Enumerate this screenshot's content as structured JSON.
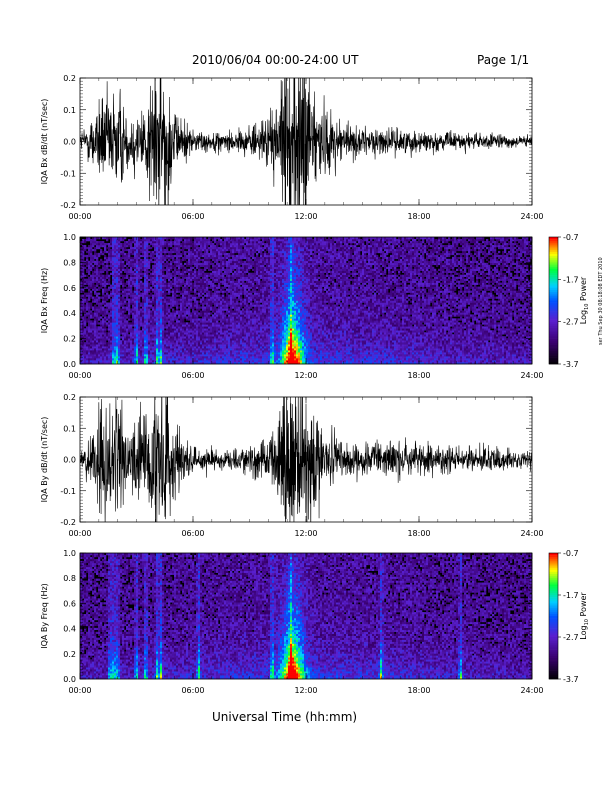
{
  "header": {
    "title": "2010/06/04  00:00-24:00 UT",
    "page": "Page 1/1"
  },
  "footer": {
    "xlabel": "Universal Time (hh:mm)",
    "side_note": "ser Thu Sep 30 08:18:08 EDT 2010"
  },
  "colorbar": {
    "label_prefix": "Log",
    "label_sub": "10",
    "label_suffix": " Power",
    "ticks": [
      "-0.7",
      "-1.7",
      "-2.7",
      "-3.7"
    ],
    "colors": [
      "#ff0000",
      "#ffff00",
      "#00ff00",
      "#00ffff",
      "#0060ff",
      "#6a00d8",
      "#000000"
    ]
  },
  "chart_data": [
    {
      "type": "line",
      "ylabel": "IQA Bx dB/dt (nT/sec)",
      "xlim": [
        "00:00",
        "24:00"
      ],
      "ylim": [
        -0.2,
        0.2
      ],
      "xticks": [
        "00:00",
        "06:00",
        "12:00",
        "18:00",
        "24:00"
      ],
      "yticks": [
        "0.2",
        "0.1",
        "0.0",
        "-0.1",
        "-0.2"
      ],
      "ytick_values": [
        0.2,
        0.1,
        0.0,
        -0.1,
        -0.2
      ],
      "envelope": {
        "x_hours": [
          0,
          0.3,
          0.8,
          1.2,
          1.6,
          2.0,
          2.5,
          3.0,
          3.5,
          3.8,
          4.5,
          5.0,
          5.5,
          6.0,
          7.0,
          8.0,
          9.0,
          10.0,
          10.5,
          10.8,
          12.0,
          12.5,
          13.0,
          14.0,
          15.0,
          16.0,
          17.0,
          18.0,
          20.0,
          22.0,
          24.0
        ],
        "amplitude": [
          0.03,
          0.06,
          0.11,
          0.18,
          0.16,
          0.22,
          0.1,
          0.12,
          0.15,
          0.3,
          0.3,
          0.1,
          0.08,
          0.04,
          0.035,
          0.04,
          0.05,
          0.09,
          0.14,
          0.3,
          0.3,
          0.18,
          0.12,
          0.07,
          0.05,
          0.045,
          0.045,
          0.04,
          0.03,
          0.025,
          0.02
        ]
      }
    },
    {
      "type": "heatmap",
      "ylabel": "IQA Bx Freq (Hz)",
      "xlim": [
        "00:00",
        "24:00"
      ],
      "ylim": [
        0.0,
        1.0
      ],
      "xticks": [
        "00:00",
        "06:00",
        "12:00",
        "18:00",
        "24:00"
      ],
      "yticks": [
        "1.0",
        "0.8",
        "0.6",
        "0.4",
        "0.2",
        "0.0"
      ],
      "ytick_values": [
        1.0,
        0.8,
        0.6,
        0.4,
        0.2,
        0.0
      ],
      "colorbar_range": [
        -3.7,
        -0.7
      ],
      "features": {
        "vertical_streaks_hours": [
          1.8,
          2.0,
          3.0,
          3.5,
          4.1,
          4.3,
          10.2,
          11.2
        ],
        "broadband_peak_hour": 11.3
      }
    },
    {
      "type": "line",
      "ylabel": "IQA By dB/dt (nT/sec)",
      "xlim": [
        "00:00",
        "24:00"
      ],
      "ylim": [
        -0.2,
        0.2
      ],
      "xticks": [
        "00:00",
        "06:00",
        "12:00",
        "18:00",
        "24:00"
      ],
      "yticks": [
        "0.2",
        "0.1",
        "0.0",
        "-0.1",
        "-0.2"
      ],
      "ytick_values": [
        0.2,
        0.1,
        0.0,
        -0.1,
        -0.2
      ],
      "envelope": {
        "x_hours": [
          0,
          0.3,
          0.8,
          1.2,
          1.6,
          2.0,
          2.5,
          3.0,
          3.5,
          3.8,
          4.5,
          5.0,
          5.5,
          6.0,
          7.0,
          8.0,
          9.0,
          10.0,
          10.5,
          10.8,
          12.0,
          12.5,
          13.0,
          14.0,
          15.0,
          16.0,
          17.0,
          18.0,
          20.0,
          22.0,
          24.0
        ],
        "amplitude": [
          0.03,
          0.06,
          0.14,
          0.22,
          0.2,
          0.3,
          0.12,
          0.14,
          0.18,
          0.3,
          0.3,
          0.12,
          0.1,
          0.05,
          0.04,
          0.04,
          0.05,
          0.08,
          0.14,
          0.3,
          0.3,
          0.15,
          0.1,
          0.07,
          0.06,
          0.06,
          0.07,
          0.06,
          0.05,
          0.04,
          0.03
        ]
      }
    },
    {
      "type": "heatmap",
      "ylabel": "IQA By Freq (Hz)",
      "xlim": [
        "00:00",
        "24:00"
      ],
      "ylim": [
        0.0,
        1.0
      ],
      "xticks": [
        "00:00",
        "06:00",
        "12:00",
        "18:00",
        "24:00"
      ],
      "yticks": [
        "1.0",
        "0.8",
        "0.6",
        "0.4",
        "0.2",
        "0.0"
      ],
      "ytick_values": [
        1.0,
        0.8,
        0.6,
        0.4,
        0.2,
        0.0
      ],
      "colorbar_range": [
        -3.7,
        -0.7
      ],
      "features": {
        "vertical_streaks_hours": [
          1.6,
          1.8,
          2.0,
          3.0,
          3.5,
          4.1,
          4.3,
          6.3,
          10.2,
          11.2,
          16.0,
          20.2
        ],
        "broadband_peak_hour": 11.3
      }
    }
  ]
}
